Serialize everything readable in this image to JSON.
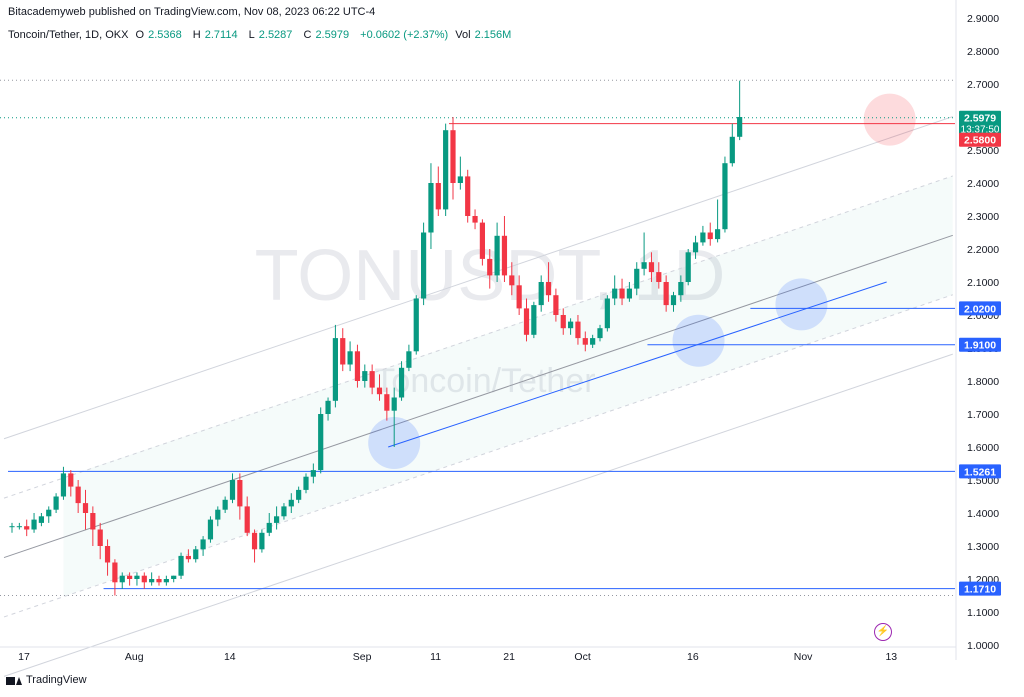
{
  "header": {
    "text": "Bitacademyweb published on TradingView.com, Nov 08, 2023 06:22 UTC-4"
  },
  "legend": {
    "symbol": "Toncoin/Tether, 1D, OKX",
    "open_label": "O",
    "open": "2.5368",
    "high_label": "H",
    "high": "2.7114",
    "low_label": "L",
    "low": "2.5287",
    "close_label": "C",
    "close": "2.5979",
    "change": "+0.0602 (+2.37%)",
    "volume_label": "Vol",
    "volume": "2.156M"
  },
  "watermark": {
    "ticker": "TONUSDT, 1D",
    "name": "Toncoin/Tether"
  },
  "footer": {
    "brand": "TradingView"
  },
  "icons": {
    "flash": "flash-icon"
  },
  "colors": {
    "up": "#089981",
    "down": "#f23645",
    "level": "#2962ff",
    "channel": "#b2b5be"
  },
  "chart_data": {
    "type": "candlestick",
    "ylim": [
      1.0,
      2.9
    ],
    "y_ticks": [
      "2.9000",
      "2.8000",
      "2.7000",
      "2.6000",
      "2.5000",
      "2.4000",
      "2.3000",
      "2.2000",
      "2.1000",
      "2.0000",
      "1.9000",
      "1.8000",
      "1.7000",
      "1.6000",
      "1.5000",
      "1.4000",
      "1.3000",
      "1.2000",
      "1.1000",
      "1.0000"
    ],
    "x_ticks": [
      {
        "label": "17",
        "index": 0
      },
      {
        "label": "Aug",
        "index": 15
      },
      {
        "label": "14",
        "index": 28
      },
      {
        "label": "Sep",
        "index": 46
      },
      {
        "label": "11",
        "index": 56
      },
      {
        "label": "21",
        "index": 66
      },
      {
        "label": "Oct",
        "index": 76
      },
      {
        "label": "16",
        "index": 91
      },
      {
        "label": "Nov",
        "index": 106
      },
      {
        "label": "13",
        "index": 118
      }
    ],
    "last_price": {
      "value": "2.5979",
      "countdown": "13:37:50",
      "color": "#089981"
    },
    "levels": [
      {
        "value": 2.58,
        "label": "2.5800",
        "color": "#f23645",
        "start_index": 60
      },
      {
        "value": 2.02,
        "label": "2.0200",
        "color": "#2962ff",
        "start_index": 101
      },
      {
        "value": 1.91,
        "label": "1.9100",
        "color": "#2962ff",
        "start_index": 87
      },
      {
        "value": 1.5261,
        "label": "1.5261",
        "color": "#2962ff",
        "start_index": 0
      },
      {
        "value": 1.171,
        "label": "1.1710",
        "color": "#2962ff",
        "start_index": 13
      }
    ],
    "candles": [
      [
        1.36,
        1.37,
        1.34,
        1.36
      ],
      [
        1.36,
        1.37,
        1.35,
        1.36
      ],
      [
        1.36,
        1.38,
        1.33,
        1.35
      ],
      [
        1.35,
        1.4,
        1.34,
        1.38
      ],
      [
        1.37,
        1.4,
        1.36,
        1.39
      ],
      [
        1.39,
        1.42,
        1.37,
        1.41
      ],
      [
        1.41,
        1.46,
        1.4,
        1.45
      ],
      [
        1.45,
        1.54,
        1.44,
        1.52
      ],
      [
        1.52,
        1.53,
        1.45,
        1.48
      ],
      [
        1.48,
        1.5,
        1.4,
        1.43
      ],
      [
        1.43,
        1.47,
        1.35,
        1.4
      ],
      [
        1.4,
        1.42,
        1.3,
        1.35
      ],
      [
        1.35,
        1.37,
        1.26,
        1.3
      ],
      [
        1.3,
        1.32,
        1.21,
        1.25
      ],
      [
        1.25,
        1.26,
        1.15,
        1.19
      ],
      [
        1.19,
        1.22,
        1.17,
        1.21
      ],
      [
        1.21,
        1.22,
        1.18,
        1.2
      ],
      [
        1.2,
        1.22,
        1.18,
        1.21
      ],
      [
        1.21,
        1.22,
        1.17,
        1.19
      ],
      [
        1.19,
        1.22,
        1.18,
        1.2
      ],
      [
        1.2,
        1.21,
        1.18,
        1.19
      ],
      [
        1.19,
        1.21,
        1.18,
        1.2
      ],
      [
        1.2,
        1.21,
        1.19,
        1.21
      ],
      [
        1.21,
        1.28,
        1.2,
        1.27
      ],
      [
        1.27,
        1.29,
        1.25,
        1.26
      ],
      [
        1.26,
        1.3,
        1.25,
        1.29
      ],
      [
        1.29,
        1.33,
        1.27,
        1.32
      ],
      [
        1.32,
        1.39,
        1.31,
        1.38
      ],
      [
        1.38,
        1.42,
        1.36,
        1.41
      ],
      [
        1.41,
        1.45,
        1.4,
        1.44
      ],
      [
        1.44,
        1.52,
        1.43,
        1.5
      ],
      [
        1.5,
        1.52,
        1.38,
        1.42
      ],
      [
        1.42,
        1.45,
        1.33,
        1.34
      ],
      [
        1.34,
        1.35,
        1.25,
        1.29
      ],
      [
        1.29,
        1.35,
        1.28,
        1.34
      ],
      [
        1.34,
        1.4,
        1.33,
        1.37
      ],
      [
        1.37,
        1.42,
        1.35,
        1.39
      ],
      [
        1.39,
        1.43,
        1.38,
        1.42
      ],
      [
        1.42,
        1.46,
        1.4,
        1.44
      ],
      [
        1.44,
        1.48,
        1.43,
        1.47
      ],
      [
        1.47,
        1.52,
        1.46,
        1.51
      ],
      [
        1.51,
        1.55,
        1.49,
        1.53
      ],
      [
        1.53,
        1.72,
        1.52,
        1.7
      ],
      [
        1.7,
        1.75,
        1.68,
        1.74
      ],
      [
        1.74,
        1.97,
        1.72,
        1.93
      ],
      [
        1.93,
        1.96,
        1.83,
        1.85
      ],
      [
        1.85,
        1.92,
        1.83,
        1.89
      ],
      [
        1.89,
        1.91,
        1.78,
        1.8
      ],
      [
        1.8,
        1.85,
        1.78,
        1.83
      ],
      [
        1.83,
        1.85,
        1.76,
        1.78
      ],
      [
        1.78,
        1.82,
        1.74,
        1.76
      ],
      [
        1.76,
        1.78,
        1.68,
        1.71
      ],
      [
        1.71,
        1.78,
        1.6,
        1.75
      ],
      [
        1.75,
        1.86,
        1.74,
        1.84
      ],
      [
        1.84,
        1.91,
        1.83,
        1.89
      ],
      [
        1.89,
        2.06,
        1.88,
        2.05
      ],
      [
        2.05,
        2.28,
        2.03,
        2.25
      ],
      [
        2.25,
        2.46,
        2.2,
        2.4
      ],
      [
        2.4,
        2.45,
        2.3,
        2.32
      ],
      [
        2.32,
        2.58,
        2.3,
        2.56
      ],
      [
        2.56,
        2.6,
        2.35,
        2.4
      ],
      [
        2.4,
        2.48,
        2.38,
        2.42
      ],
      [
        2.42,
        2.44,
        2.28,
        2.3
      ],
      [
        2.3,
        2.32,
        2.26,
        2.28
      ],
      [
        2.28,
        2.29,
        2.15,
        2.17
      ],
      [
        2.17,
        2.2,
        2.08,
        2.12
      ],
      [
        2.12,
        2.28,
        2.1,
        2.24
      ],
      [
        2.24,
        2.3,
        2.1,
        2.12
      ],
      [
        2.12,
        2.16,
        2.06,
        2.09
      ],
      [
        2.09,
        2.12,
        2.0,
        2.02
      ],
      [
        2.02,
        2.05,
        1.92,
        1.94
      ],
      [
        1.94,
        2.04,
        1.93,
        2.03
      ],
      [
        2.03,
        2.12,
        2.01,
        2.1
      ],
      [
        2.1,
        2.16,
        2.04,
        2.06
      ],
      [
        2.06,
        2.08,
        1.98,
        2.0
      ],
      [
        2.0,
        2.02,
        1.94,
        1.96
      ],
      [
        1.96,
        1.99,
        1.94,
        1.98
      ],
      [
        1.98,
        2.0,
        1.91,
        1.93
      ],
      [
        1.93,
        1.95,
        1.89,
        1.91
      ],
      [
        1.91,
        1.94,
        1.9,
        1.93
      ],
      [
        1.93,
        1.97,
        1.92,
        1.96
      ],
      [
        1.96,
        2.06,
        1.95,
        2.05
      ],
      [
        2.05,
        2.12,
        2.03,
        2.08
      ],
      [
        2.08,
        2.11,
        2.03,
        2.05
      ],
      [
        2.05,
        2.1,
        2.04,
        2.08
      ],
      [
        2.08,
        2.16,
        2.06,
        2.14
      ],
      [
        2.14,
        2.25,
        2.12,
        2.16
      ],
      [
        2.16,
        2.19,
        2.1,
        2.13
      ],
      [
        2.13,
        2.16,
        2.08,
        2.1
      ],
      [
        2.1,
        2.12,
        2.01,
        2.03
      ],
      [
        2.03,
        2.07,
        2.01,
        2.06
      ],
      [
        2.06,
        2.12,
        2.04,
        2.1
      ],
      [
        2.1,
        2.2,
        2.09,
        2.19
      ],
      [
        2.19,
        2.24,
        2.17,
        2.22
      ],
      [
        2.22,
        2.27,
        2.21,
        2.25
      ],
      [
        2.25,
        2.28,
        2.21,
        2.23
      ],
      [
        2.23,
        2.35,
        2.22,
        2.26
      ],
      [
        2.26,
        2.48,
        2.25,
        2.46
      ],
      [
        2.46,
        2.58,
        2.45,
        2.54
      ],
      [
        2.54,
        2.71,
        2.53,
        2.6
      ]
    ]
  }
}
